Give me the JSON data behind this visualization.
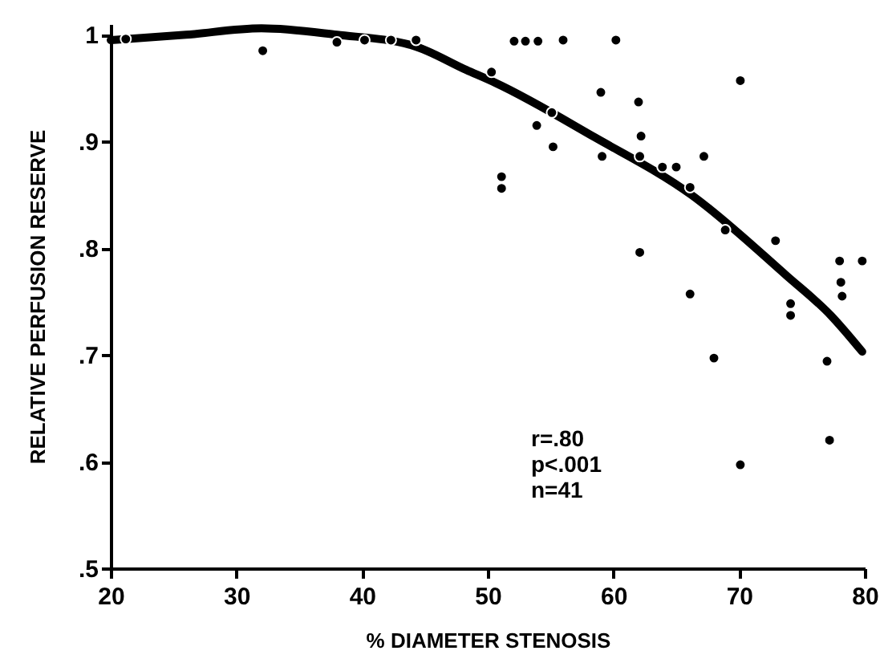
{
  "chart_data": {
    "type": "scatter",
    "xlabel": "% DIAMETER STENOSIS",
    "ylabel": "RELATIVE PERFUSION RESERVE",
    "xlim": [
      20,
      80
    ],
    "xticks": [
      20,
      30,
      40,
      50,
      60,
      70,
      80
    ],
    "ylim": [
      0.5,
      1.01
    ],
    "yticks": [
      {
        "value": 0.5,
        "label": ".5"
      },
      {
        "value": 0.6,
        "label": ".6"
      },
      {
        "value": 0.7,
        "label": ".7"
      },
      {
        "value": 0.8,
        "label": ".8"
      },
      {
        "value": 0.9,
        "label": ".9"
      },
      1
    ],
    "grid": false,
    "annotations": [
      "r=.80",
      "p<.001",
      "n=41"
    ],
    "series": [
      {
        "type": "scatter",
        "marker": "circle",
        "color": "#000000",
        "x": [
          21.2,
          32.1,
          38,
          40.2,
          42.3,
          44.3,
          50.3,
          52.1,
          53,
          54,
          56,
          60.2,
          70.1,
          59,
          62,
          53.9,
          55.1,
          62.2,
          55.2,
          59.1,
          62.1,
          67.2,
          63.9,
          65,
          66.1,
          51.1,
          51.1,
          68.9,
          72.9,
          62.1,
          78,
          79.8,
          78.1,
          78.2,
          66.1,
          74.1,
          74.1,
          68,
          77,
          77.2,
          70.1
        ],
        "values": [
          0.996,
          0.985,
          0.993,
          0.995,
          0.995,
          0.995,
          0.965,
          0.994,
          0.994,
          0.994,
          0.995,
          0.995,
          0.957,
          0.946,
          0.937,
          0.915,
          0.927,
          0.905,
          0.895,
          0.886,
          0.886,
          0.886,
          0.876,
          0.876,
          0.857,
          0.867,
          0.856,
          0.817,
          0.807,
          0.796,
          0.788,
          0.788,
          0.768,
          0.755,
          0.757,
          0.748,
          0.737,
          0.697,
          0.694,
          0.62,
          0.597
        ]
      },
      {
        "type": "line",
        "color": "#000000",
        "line_style": "solid",
        "x": [
          20,
          26,
          32,
          38,
          44,
          48.3,
          50.6,
          58.5,
          66.2,
          73.8,
          77.3,
          79.8
        ],
        "values": [
          0.995,
          1.0,
          1.006,
          1.0,
          0.99,
          0.967,
          0.955,
          0.904,
          0.85,
          0.774,
          0.737,
          0.703
        ]
      }
    ]
  }
}
